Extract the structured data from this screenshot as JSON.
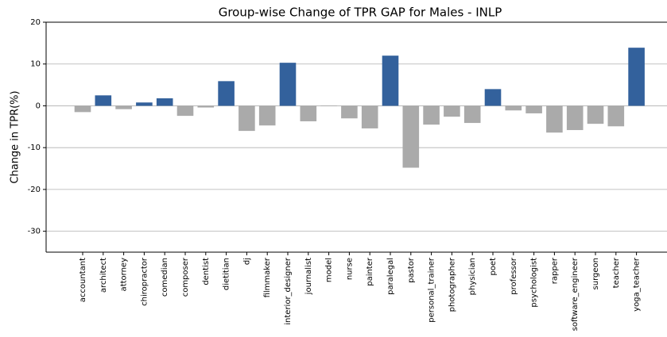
{
  "chart_data": {
    "type": "bar",
    "title": "Group-wise Change of TPR GAP for Males - INLP",
    "ylabel": "Change in TPR(%)",
    "categories": [
      "accountant",
      "architect",
      "attorney",
      "chiropractor",
      "comedian",
      "composer",
      "dentist",
      "dietitian",
      "dj",
      "filmmaker",
      "interior_designer",
      "journalist",
      "model",
      "nurse",
      "painter",
      "paralegal",
      "pastor",
      "personal_trainer",
      "photographer",
      "physician",
      "poet",
      "professor",
      "psychologist",
      "rapper",
      "software_engineer",
      "surgeon",
      "teacher",
      "yoga_teacher"
    ],
    "values": [
      -1.5,
      2.5,
      -0.8,
      0.8,
      1.8,
      -2.4,
      -0.4,
      5.9,
      -6,
      -4.7,
      10.3,
      -3.7,
      -0.1,
      -3,
      -5.4,
      12,
      -14.8,
      -4.5,
      -2.6,
      -4.1,
      4,
      -1.1,
      -1.8,
      -6.4,
      -5.8,
      -4.3,
      -4.9,
      13.9
    ],
    "positive_color": "#33619c",
    "negative_color": "#aaaaaa",
    "ylim": [
      -35,
      20
    ],
    "yticks": [
      -30,
      -20,
      -10,
      0,
      10,
      20
    ],
    "grid": true
  }
}
